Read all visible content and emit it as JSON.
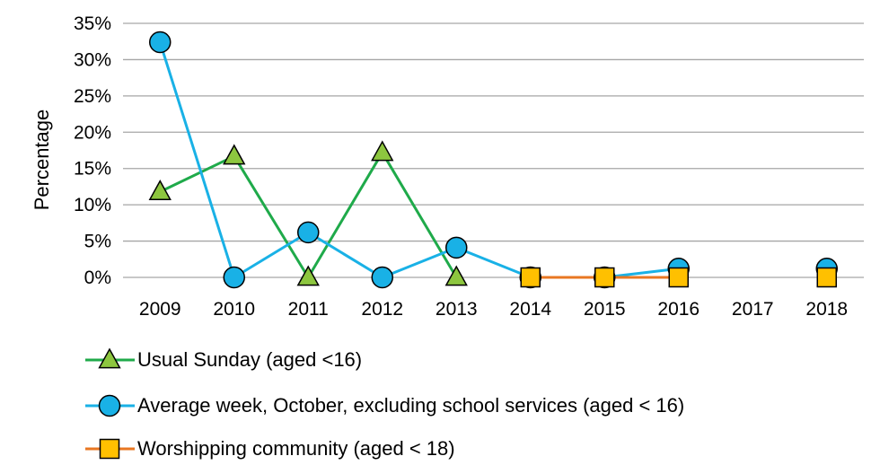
{
  "chart_data": {
    "type": "line",
    "title": "",
    "xlabel": "",
    "ylabel": "Percentage",
    "categories": [
      "2009",
      "2010",
      "2011",
      "2012",
      "2013",
      "2014",
      "2015",
      "2016",
      "2017",
      "2018"
    ],
    "ylim": [
      0,
      35
    ],
    "yticks": [
      0,
      5,
      10,
      15,
      20,
      25,
      30,
      35
    ],
    "ytick_labels": [
      "0%",
      "5%",
      "10%",
      "15%",
      "20%",
      "25%",
      "30%",
      "35%"
    ],
    "grid": true,
    "legend_position": "bottom",
    "series": [
      {
        "name": "Usual Sunday (aged <16)",
        "color": "#1faa4a",
        "marker": "triangle",
        "marker_fill": "#8dc63f",
        "values": [
          11.8,
          16.7,
          0,
          17.2,
          0,
          null,
          null,
          null,
          null,
          null
        ]
      },
      {
        "name": "Average week, October, excluding school services (aged < 16)",
        "color": "#19b1e6",
        "marker": "circle",
        "marker_fill": "#19b1e6",
        "values": [
          32.4,
          0,
          6.2,
          0,
          4.1,
          0,
          0,
          1.2,
          null,
          1.2
        ]
      },
      {
        "name": "Worshipping community (aged < 18)",
        "color": "#e87722",
        "marker": "square",
        "marker_fill": "#ffc000",
        "values": [
          null,
          null,
          null,
          null,
          null,
          0,
          0,
          0,
          null,
          0
        ]
      }
    ]
  }
}
